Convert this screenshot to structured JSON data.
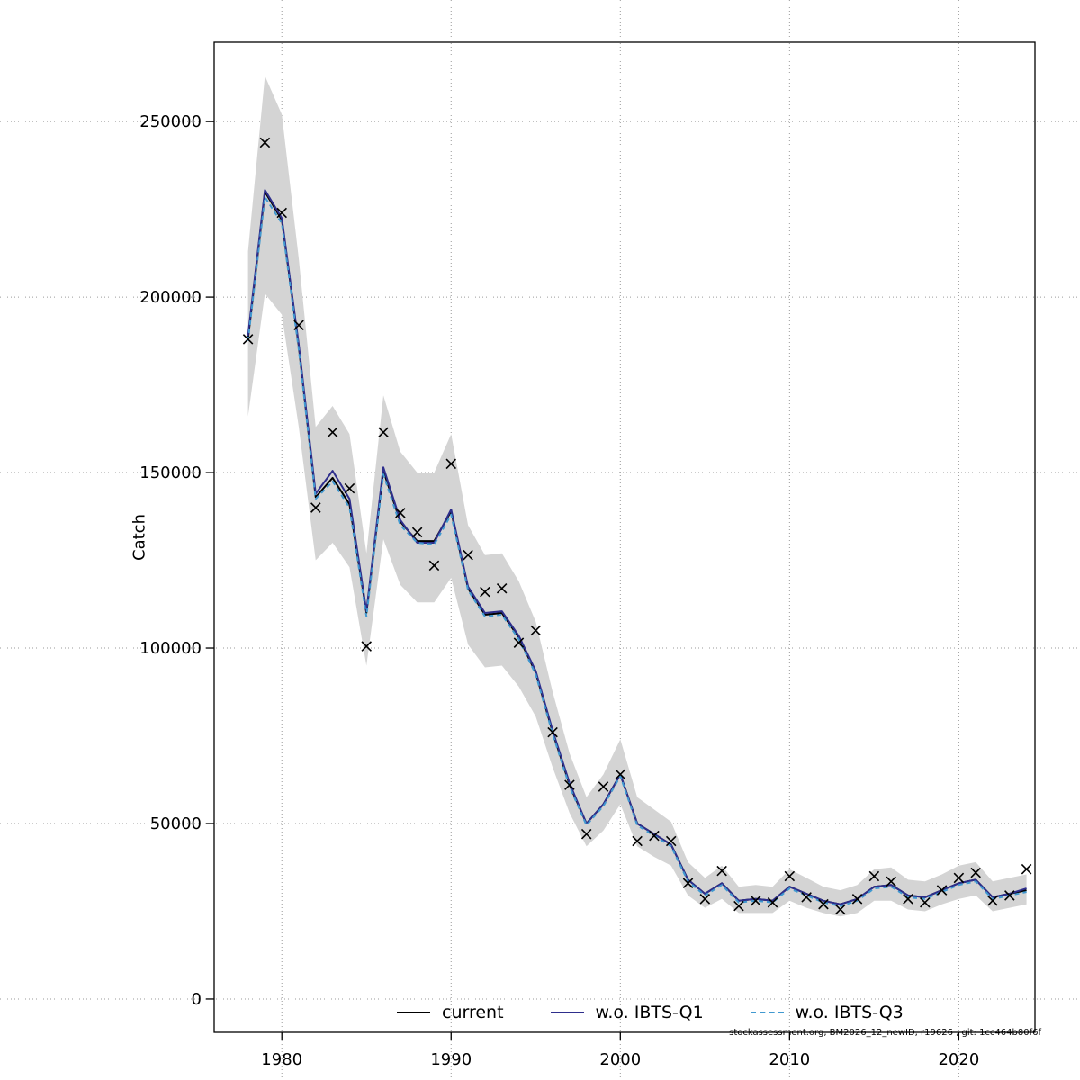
{
  "figure": {
    "ylabel": "Catch",
    "footnote": "stockassessment.org, BM2026_12_newID, r19626 , git: 1cc464b80f6f"
  },
  "legend": {
    "items": [
      {
        "label": "current",
        "color": "#000000",
        "dash": "solid"
      },
      {
        "label": "w.o. IBTS-Q1",
        "color": "#2e2e8c",
        "dash": "solid"
      },
      {
        "label": "w.o. IBTS-Q3",
        "color": "#4199d0",
        "dash": "dashed"
      }
    ]
  },
  "chart_data": {
    "type": "line",
    "title": "",
    "xlabel": "",
    "ylabel": "Catch",
    "grid": true,
    "legend_position": "bottom",
    "xlim": [
      1976,
      2024.5
    ],
    "ylim": [
      -9500,
      272600
    ],
    "x_ticks": [
      1980,
      1990,
      2000,
      2010,
      2020
    ],
    "y_ticks": [
      0,
      50000,
      100000,
      150000,
      200000,
      250000
    ],
    "band_color": "#d4d4d4",
    "marker": "x",
    "years": [
      1978,
      1979,
      1980,
      1981,
      1982,
      1983,
      1984,
      1985,
      1986,
      1987,
      1988,
      1989,
      1990,
      1991,
      1992,
      1993,
      1994,
      1995,
      1996,
      1997,
      1998,
      1999,
      2000,
      2001,
      2002,
      2003,
      2004,
      2005,
      2006,
      2007,
      2008,
      2009,
      2010,
      2011,
      2012,
      2013,
      2014,
      2015,
      2016,
      2017,
      2018,
      2019,
      2020,
      2021,
      2022,
      2023,
      2024
    ],
    "observed": [
      188000,
      244000,
      224000,
      192000,
      140000,
      161500,
      145500,
      100500,
      161500,
      138500,
      133000,
      123500,
      152500,
      126500,
      116000,
      117000,
      101500,
      105000,
      76000,
      61000,
      47000,
      60500,
      64000,
      45000,
      46500,
      45000,
      33000,
      28500,
      36500,
      26500,
      28000,
      27500,
      35000,
      29000,
      27000,
      25500,
      28500,
      35000,
      33500,
      28500,
      27500,
      31000,
      34500,
      36000,
      28000,
      29500,
      37000
    ],
    "band": {
      "lower": [
        166000,
        201000,
        195000,
        163000,
        125000,
        130000,
        123000,
        95000,
        131000,
        118000,
        113000,
        113000,
        120000,
        101000,
        94500,
        95000,
        89000,
        80500,
        66000,
        53000,
        43500,
        48000,
        55500,
        43500,
        40500,
        38000,
        29500,
        26000,
        28500,
        24500,
        24500,
        24500,
        28000,
        26000,
        24500,
        23500,
        24500,
        28000,
        28000,
        25500,
        25000,
        27000,
        28500,
        29500,
        25000,
        26000,
        27000
      ],
      "upper": [
        213000,
        263000,
        252000,
        211000,
        163000,
        169000,
        161000,
        127000,
        172000,
        156000,
        150000,
        150000,
        161000,
        135000,
        126500,
        127000,
        119000,
        107500,
        87500,
        70000,
        57500,
        64000,
        74000,
        57500,
        54000,
        50500,
        39000,
        34500,
        38000,
        32000,
        32500,
        32000,
        37000,
        34500,
        32000,
        31000,
        32500,
        37000,
        37500,
        34000,
        33500,
        35500,
        38000,
        39000,
        33500,
        34500,
        35500
      ]
    },
    "series": [
      {
        "name": "current",
        "color": "#000000",
        "style": "solid",
        "values": [
          188000,
          230000,
          222000,
          186000,
          143000,
          148500,
          141000,
          110000,
          150500,
          136000,
          130500,
          130500,
          139000,
          117000,
          109500,
          110000,
          103000,
          93000,
          76000,
          61000,
          50000,
          55500,
          64000,
          50000,
          47000,
          44000,
          34000,
          30000,
          33000,
          28000,
          28500,
          28000,
          32000,
          30000,
          28000,
          27000,
          28500,
          32000,
          32500,
          29500,
          29000,
          31000,
          33000,
          34000,
          29000,
          30000,
          31000
        ]
      },
      {
        "name": "w.o. IBTS-Q1",
        "color": "#2e2e8c",
        "style": "solid",
        "values": [
          189000,
          230500,
          222500,
          186500,
          144000,
          150500,
          142500,
          110500,
          151500,
          136500,
          130000,
          130000,
          139500,
          117500,
          110000,
          110500,
          103500,
          93500,
          76500,
          61500,
          50000,
          55500,
          64000,
          50000,
          47000,
          44000,
          34000,
          30000,
          33000,
          28000,
          28500,
          28000,
          32000,
          30000,
          28000,
          27000,
          28500,
          32000,
          32500,
          29500,
          29000,
          31000,
          33000,
          34000,
          29000,
          30000,
          31500
        ]
      },
      {
        "name": "w.o. IBTS-Q3",
        "color": "#4199d0",
        "style": "dashed",
        "values": [
          187500,
          228500,
          221000,
          185000,
          142500,
          147500,
          140000,
          109000,
          149500,
          135000,
          130000,
          129500,
          138000,
          116500,
          109000,
          109500,
          102500,
          92500,
          75500,
          60500,
          49500,
          55000,
          63500,
          49500,
          46500,
          43500,
          33500,
          29500,
          32500,
          27500,
          28000,
          27500,
          31500,
          29500,
          27500,
          26500,
          28000,
          31500,
          32000,
          29000,
          28500,
          30500,
          32500,
          33500,
          28500,
          29500,
          30500
        ]
      }
    ]
  }
}
